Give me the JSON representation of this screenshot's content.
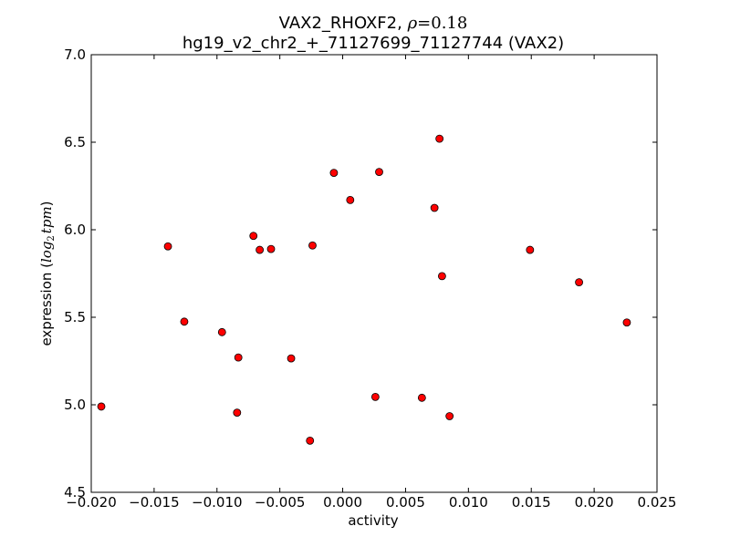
{
  "chart_data": {
    "type": "scatter",
    "title_prefix": "VAX2_RHOXF2, ",
    "title_rho_symbol": "ρ",
    "title_rho_value": "=0.18",
    "subtitle": "hg19_v2_chr2_+_71127699_71127744 (VAX2)",
    "xlabel": "activity",
    "ylabel_prefix": "expression (",
    "ylabel_math_log": "log",
    "ylabel_math_sub": "2",
    "ylabel_math_tpm": "tpm",
    "ylabel_suffix": ")",
    "xlim": [
      -0.02,
      0.025
    ],
    "ylim": [
      4.5,
      7.0
    ],
    "xticks": [
      -0.02,
      -0.015,
      -0.01,
      -0.005,
      0.0,
      0.005,
      0.01,
      0.015,
      0.02,
      0.025
    ],
    "xtick_labels": [
      "−0.020",
      "−0.015",
      "−0.010",
      "−0.005",
      "0.000",
      "0.005",
      "0.010",
      "0.015",
      "0.020",
      "0.025"
    ],
    "yticks": [
      4.5,
      5.0,
      5.5,
      6.0,
      6.5,
      7.0
    ],
    "ytick_labels": [
      "4.5",
      "5.0",
      "5.5",
      "6.0",
      "6.5",
      "7.0"
    ],
    "marker_color": "#ff0000",
    "marker_edge": "#000000",
    "points": [
      {
        "x": -0.0192,
        "y": 4.99
      },
      {
        "x": -0.0139,
        "y": 5.905
      },
      {
        "x": -0.0126,
        "y": 5.475
      },
      {
        "x": -0.0096,
        "y": 5.415
      },
      {
        "x": -0.0083,
        "y": 5.27
      },
      {
        "x": -0.0084,
        "y": 4.955
      },
      {
        "x": -0.0071,
        "y": 5.965
      },
      {
        "x": -0.0066,
        "y": 5.885
      },
      {
        "x": -0.0057,
        "y": 5.89
      },
      {
        "x": -0.0041,
        "y": 5.265
      },
      {
        "x": -0.0026,
        "y": 4.795
      },
      {
        "x": -0.0024,
        "y": 5.91
      },
      {
        "x": -0.0007,
        "y": 6.325
      },
      {
        "x": 0.0006,
        "y": 6.17
      },
      {
        "x": 0.0026,
        "y": 5.045
      },
      {
        "x": 0.0029,
        "y": 6.33
      },
      {
        "x": 0.0063,
        "y": 5.04
      },
      {
        "x": 0.0073,
        "y": 6.125
      },
      {
        "x": 0.0077,
        "y": 6.52
      },
      {
        "x": 0.0079,
        "y": 5.735
      },
      {
        "x": 0.0085,
        "y": 4.935
      },
      {
        "x": 0.0149,
        "y": 5.885
      },
      {
        "x": 0.0188,
        "y": 5.7
      },
      {
        "x": 0.0226,
        "y": 5.47
      }
    ]
  }
}
